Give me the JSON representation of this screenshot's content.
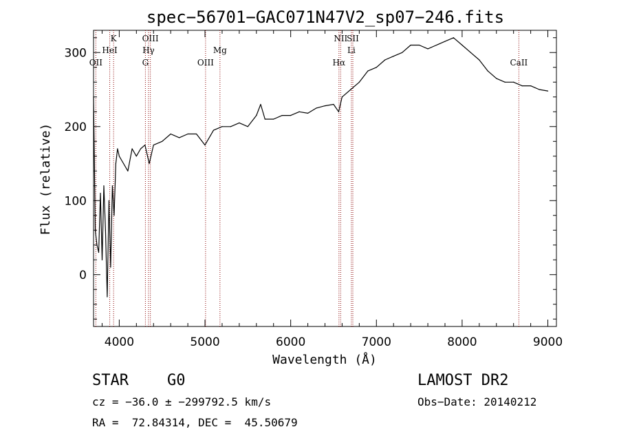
{
  "chart_data": {
    "type": "line",
    "title": "spec−56701−GAC071N47V2_sp07−246.fits",
    "xlabel": "Wavelength (Å)",
    "ylabel": "Flux (relative)",
    "xlim": [
      3700,
      9100
    ],
    "ylim": [
      -70,
      330
    ],
    "xticks": [
      4000,
      5000,
      6000,
      7000,
      8000,
      9000
    ],
    "yticks": [
      0,
      100,
      200,
      300
    ],
    "grid": false,
    "line_color": "#000000",
    "marker_color": "#8b0000",
    "series": [
      {
        "x": [
          3700,
          3720,
          3740,
          3760,
          3780,
          3800,
          3820,
          3840,
          3860,
          3880,
          3900,
          3920,
          3940,
          3960,
          3980,
          4000,
          4050,
          4100,
          4150,
          4200,
          4250,
          4300,
          4350,
          4400,
          4500,
          4600,
          4700,
          4800,
          4900,
          5000,
          5100,
          5200,
          5300,
          5400,
          5500,
          5600,
          5650,
          5700,
          5800,
          5900,
          6000,
          6100,
          6200,
          6300,
          6400,
          6500,
          6560,
          6600,
          6700,
          6800,
          6900,
          7000,
          7100,
          7200,
          7300,
          7400,
          7500,
          7600,
          7700,
          7800,
          7900,
          8000,
          8100,
          8200,
          8300,
          8400,
          8500,
          8600,
          8700,
          8800,
          8900,
          9000
        ],
        "y": [
          240,
          60,
          40,
          30,
          110,
          20,
          120,
          60,
          -30,
          100,
          10,
          120,
          80,
          150,
          170,
          160,
          150,
          140,
          170,
          160,
          170,
          175,
          150,
          175,
          180,
          190,
          185,
          190,
          190,
          175,
          195,
          200,
          200,
          205,
          200,
          215,
          230,
          210,
          210,
          215,
          215,
          220,
          218,
          225,
          228,
          230,
          220,
          240,
          250,
          260,
          275,
          280,
          290,
          295,
          300,
          310,
          310,
          305,
          310,
          315,
          320,
          310,
          300,
          290,
          275,
          265,
          260,
          260,
          255,
          255,
          250,
          248
        ]
      }
    ],
    "lines": [
      {
        "label": "OII",
        "x": 3727,
        "row": 3
      },
      {
        "label": "K",
        "x": 3934,
        "row": 1
      },
      {
        "label": "HeI",
        "x": 3889,
        "row": 2
      },
      {
        "label": "OIII",
        "x": 4363,
        "row": 1
      },
      {
        "label": "Hγ",
        "x": 4341,
        "row": 2
      },
      {
        "label": "G",
        "x": 4305,
        "row": 3
      },
      {
        "label": "OIII",
        "x": 5007,
        "row": 3
      },
      {
        "label": "Mg",
        "x": 5175,
        "row": 2
      },
      {
        "label": "NII",
        "x": 6583,
        "row": 1
      },
      {
        "label": "Hα",
        "x": 6563,
        "row": 3
      },
      {
        "label": "Li",
        "x": 6708,
        "row": 2
      },
      {
        "label": "SII",
        "x": 6725,
        "row": 1
      },
      {
        "label": "CaII",
        "x": 8662,
        "row": 3
      }
    ]
  },
  "info": {
    "object_class": "STAR",
    "subclass": "G0",
    "survey": "LAMOST DR2",
    "redshift_line": "cz = −36.0 ± −299792.5 km/s",
    "obs_date": "Obs−Date: 20140212",
    "coords": "RA =  72.84314, DEC =  45.50679"
  }
}
